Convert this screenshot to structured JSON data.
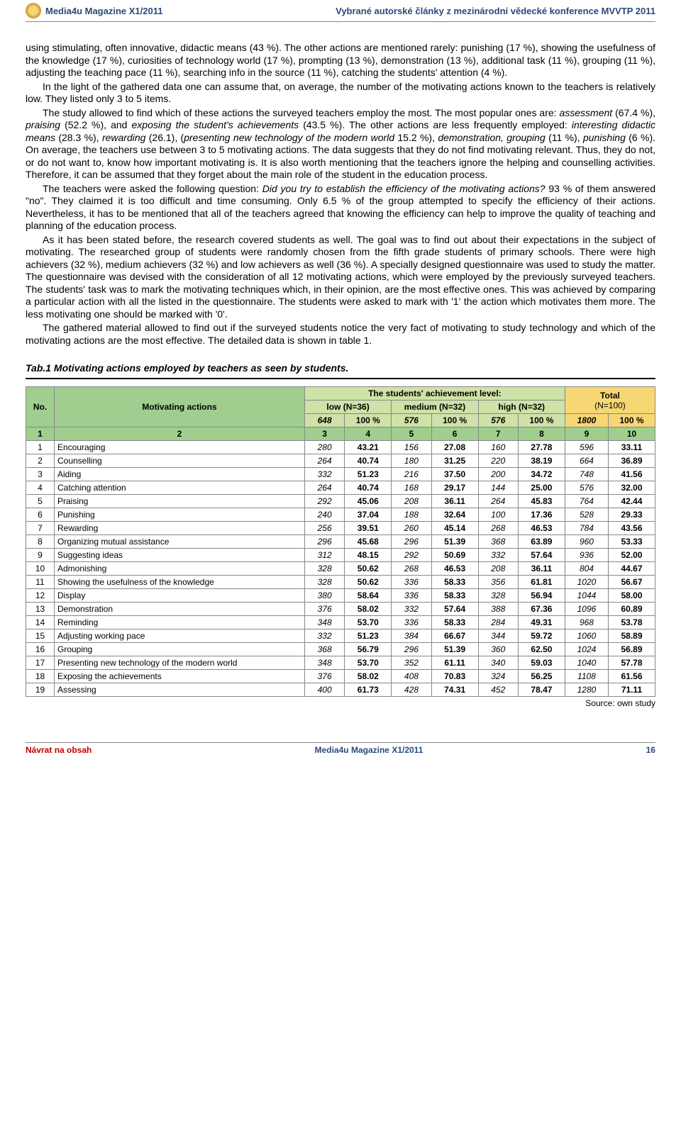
{
  "header": {
    "left": "Media4u Magazine X1/2011",
    "right": "Vybrané autorské články z mezinárodní vědecké konference MVVTP 2011"
  },
  "body": {
    "p1": "using stimulating, often innovative, didactic means (43 %). The other actions are mentioned rarely: punishing (17 %), showing the usefulness of the knowledge (17 %), curiosities of technology world (17 %), prompting (13 %), demonstration (13 %), additional task (11 %), grouping (11 %), adjusting the teaching pace (11 %), searching info in the source (11 %), catching the students' attention (4 %).",
    "p2a": "In the light of the gathered data one can assume that, on average, the number of the motivating actions known to the teachers is relatively low. They listed only 3 to 5 items.",
    "p3a": "The study allowed to find which of these actions the surveyed teachers employ the most. The most popular ones are: ",
    "p3b": "assessment ",
    "p3c": "(67.4 %), ",
    "p3d": "praising ",
    "p3e": "(52.2 %), and ",
    "p3f": "exposing the student's achievements ",
    "p3g": "(43.5 %). The other actions are less frequently employed: ",
    "p3h": "interesting didactic means ",
    "p3i": "(28.3 %), ",
    "p3j": "rewarding ",
    "p3k": "(26.1), (",
    "p3l": "presenting new technology of the modern world ",
    "p3m": "15.2 %), ",
    "p3n": "demonstration, grouping ",
    "p3o": "(11 %), ",
    "p3p": "punishing ",
    "p3q": "(6 %). On average, the teachers use between 3 to 5 motivating actions. The data suggests that they do not find motivating relevant. Thus, they do not, or do not want to, know how important motivating is. It is also worth mentioning that the teachers ignore the helping and counselling activities. Therefore, it can be assumed that they forget about the main role of the student in the education process.",
    "p4a": "The teachers were asked the following question: ",
    "p4b": "Did you try to establish the efficiency of the motivating actions? ",
    "p4c": "93 % of them answered \"no\". They claimed it is too difficult and time consuming. Only 6.5 % of the group attempted to specify the efficiency of their actions. Nevertheless, it has to be mentioned that all of the teachers agreed that knowing the efficiency can help to improve the quality of teaching and planning of the education process.",
    "p5": "As it has been stated before, the research covered students as well. The goal was to find out about their expectations in the subject of motivating. The researched group of students were randomly chosen from the fifth grade students of primary schools. There were high achievers (32 %), medium achievers (32 %) and low achievers as well (36 %). A specially designed questionnaire was used to study the matter. The questionnaire was devised with the consideration of all 12 motivating actions, which were employed by the previously surveyed teachers. The students' task was to mark the motivating techniques which, in their opinion, are the most effective ones. This was achieved by comparing a particular action with all the listed in the questionnaire. The students were asked to mark with '1' the action which motivates them more. The less motivating one should be marked with '0'.",
    "p6": "The gathered material allowed to find out if the surveyed students notice the very fact of motivating to study technology and which of the motivating actions are the most effective. The detailed data is shown in table 1."
  },
  "table": {
    "caption": "Tab.1 Motivating actions employed by teachers as seen by students.",
    "head": {
      "no": "No.",
      "actions": "Motivating actions",
      "achieve": "The students' achievement level:",
      "low": "low (N=36)",
      "med": "medium (N=32)",
      "high": "high (N=32)",
      "total": "Total",
      "totalN": "(N=100)"
    },
    "sumrow": [
      "648",
      "100 %",
      "576",
      "100 %",
      "576",
      "100 %",
      "1800",
      "100 %"
    ],
    "colnums": [
      "1",
      "2",
      "3",
      "4",
      "5",
      "6",
      "7",
      "8",
      "9",
      "10"
    ],
    "rows": [
      {
        "n": "1",
        "a": "Encouraging",
        "v": [
          "280",
          "43.21",
          "156",
          "27.08",
          "160",
          "27.78",
          "596",
          "33.11"
        ]
      },
      {
        "n": "2",
        "a": "Counselling",
        "v": [
          "264",
          "40.74",
          "180",
          "31.25",
          "220",
          "38.19",
          "664",
          "36.89"
        ]
      },
      {
        "n": "3",
        "a": "Aiding",
        "v": [
          "332",
          "51.23",
          "216",
          "37.50",
          "200",
          "34.72",
          "748",
          "41.56"
        ]
      },
      {
        "n": "4",
        "a": "Catching attention",
        "v": [
          "264",
          "40.74",
          "168",
          "29.17",
          "144",
          "25.00",
          "576",
          "32.00"
        ]
      },
      {
        "n": "5",
        "a": "Praising",
        "v": [
          "292",
          "45.06",
          "208",
          "36.11",
          "264",
          "45.83",
          "764",
          "42.44"
        ]
      },
      {
        "n": "6",
        "a": "Punishing",
        "v": [
          "240",
          "37.04",
          "188",
          "32.64",
          "100",
          "17.36",
          "528",
          "29.33"
        ]
      },
      {
        "n": "7",
        "a": "Rewarding",
        "v": [
          "256",
          "39.51",
          "260",
          "45.14",
          "268",
          "46.53",
          "784",
          "43.56"
        ]
      },
      {
        "n": "8",
        "a": "Organizing mutual assistance",
        "v": [
          "296",
          "45.68",
          "296",
          "51.39",
          "368",
          "63.89",
          "960",
          "53.33"
        ]
      },
      {
        "n": "9",
        "a": "Suggesting ideas",
        "v": [
          "312",
          "48.15",
          "292",
          "50.69",
          "332",
          "57.64",
          "936",
          "52.00"
        ]
      },
      {
        "n": "10",
        "a": "Admonishing",
        "v": [
          "328",
          "50.62",
          "268",
          "46.53",
          "208",
          "36.11",
          "804",
          "44.67"
        ]
      },
      {
        "n": "11",
        "a": "Showing the usefulness of the knowledge",
        "v": [
          "328",
          "50.62",
          "336",
          "58.33",
          "356",
          "61.81",
          "1020",
          "56.67"
        ]
      },
      {
        "n": "12",
        "a": "Display",
        "v": [
          "380",
          "58.64",
          "336",
          "58.33",
          "328",
          "56.94",
          "1044",
          "58.00"
        ]
      },
      {
        "n": "13",
        "a": "Demonstration",
        "v": [
          "376",
          "58.02",
          "332",
          "57.64",
          "388",
          "67.36",
          "1096",
          "60.89"
        ]
      },
      {
        "n": "14",
        "a": "Reminding",
        "v": [
          "348",
          "53.70",
          "336",
          "58.33",
          "284",
          "49.31",
          "968",
          "53.78"
        ]
      },
      {
        "n": "15",
        "a": "Adjusting working pace",
        "v": [
          "332",
          "51.23",
          "384",
          "66.67",
          "344",
          "59.72",
          "1060",
          "58.89"
        ]
      },
      {
        "n": "16",
        "a": "Grouping",
        "v": [
          "368",
          "56.79",
          "296",
          "51.39",
          "360",
          "62.50",
          "1024",
          "56.89"
        ]
      },
      {
        "n": "17",
        "a": "Presenting new technology of the modern world",
        "v": [
          "348",
          "53.70",
          "352",
          "61.11",
          "340",
          "59.03",
          "1040",
          "57.78"
        ]
      },
      {
        "n": "18",
        "a": "Exposing the achievements",
        "v": [
          "376",
          "58.02",
          "408",
          "70.83",
          "324",
          "56.25",
          "1108",
          "61.56"
        ]
      },
      {
        "n": "19",
        "a": "Assessing",
        "v": [
          "400",
          "61.73",
          "428",
          "74.31",
          "452",
          "78.47",
          "1280",
          "71.11"
        ]
      }
    ],
    "source": "Source: own study"
  },
  "footer": {
    "ret": "Návrat na obsah",
    "mid": "Media4u Magazine X1/2011",
    "page": "16"
  }
}
